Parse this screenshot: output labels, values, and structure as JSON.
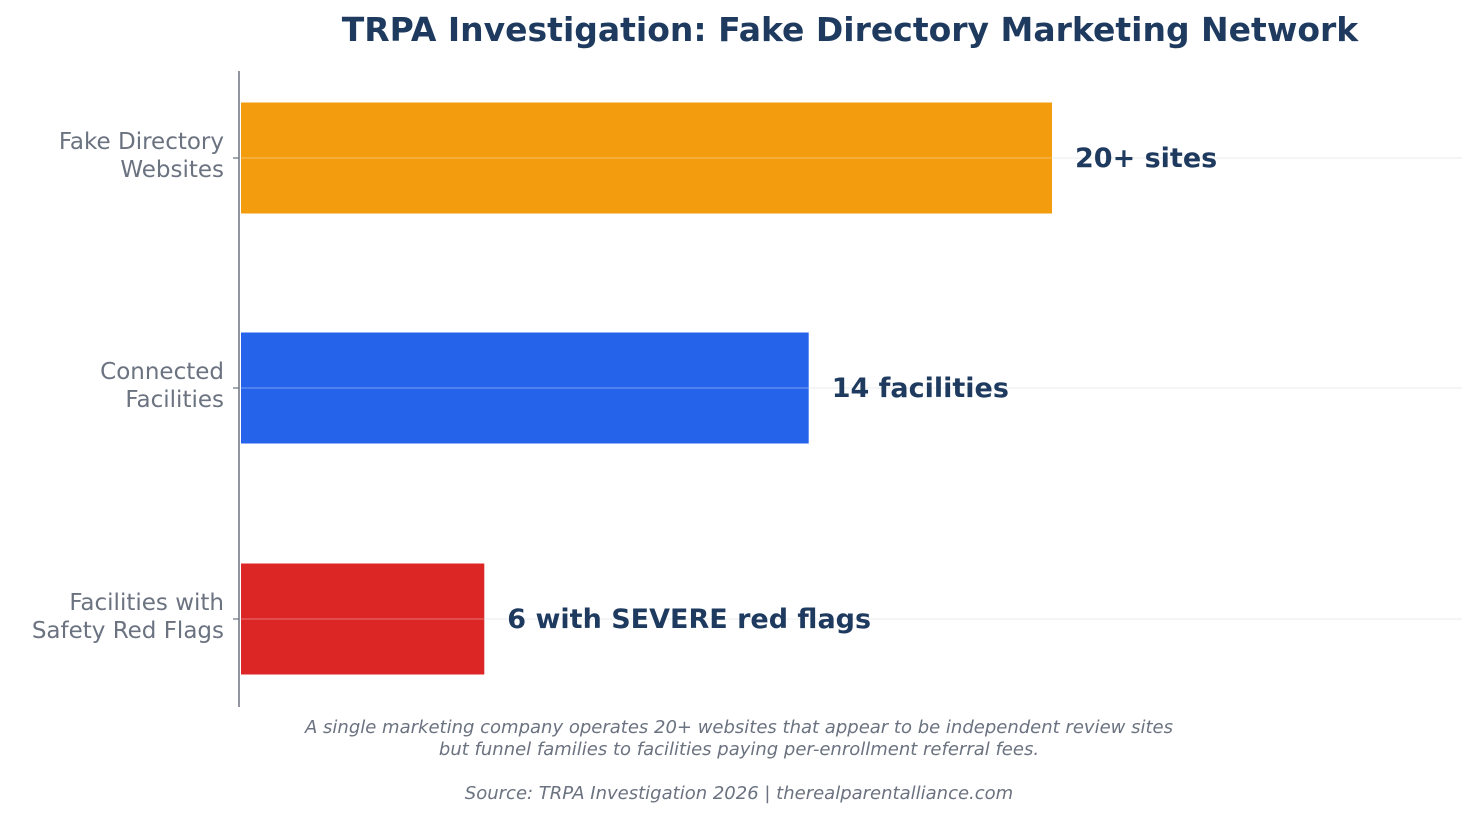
{
  "colors": {
    "title": "#1e3a5f",
    "axis_text": "#6b7280",
    "value_text": "#1e3a5f",
    "axis_line": "#6b7280",
    "grid": "#e5e7eb"
  },
  "chart_data": {
    "type": "bar",
    "orientation": "horizontal",
    "title": "TRPA Investigation: Fake Directory Marketing Network",
    "xlabel": "",
    "ylabel": "",
    "xlim": [
      0,
      30
    ],
    "grid": true,
    "categories": [
      [
        "Fake Directory",
        "Websites"
      ],
      [
        "Connected",
        "Facilities"
      ],
      [
        "Facilities with",
        "Safety Red Flags"
      ]
    ],
    "values": [
      20,
      14,
      6
    ],
    "value_labels": [
      "20+ sites",
      "14 facilities",
      "6 with SEVERE red flags"
    ],
    "bar_colors": [
      "#f39c0d",
      "#2563eb",
      "#dc2626"
    ]
  },
  "caption": {
    "line1": "A single marketing company operates 20+ websites that appear to be independent review sites",
    "line2": "but funnel families to facilities paying per-enrollment referral fees."
  },
  "source": "Source: TRPA Investigation 2026 | therealparentalliance.com"
}
